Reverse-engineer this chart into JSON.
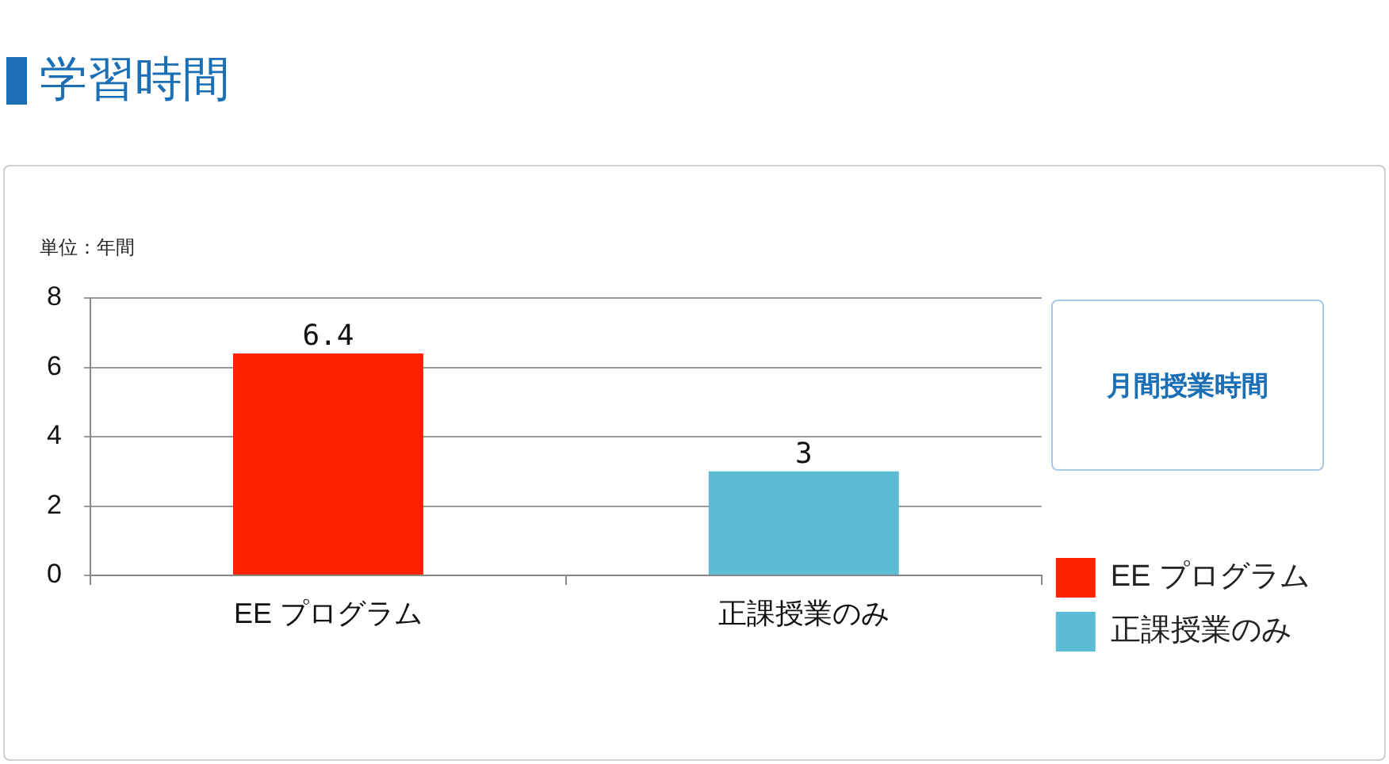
{
  "chart_data": {
    "type": "bar",
    "title": "学習時間",
    "ylabel": "単位：年間",
    "categories": [
      "EE プログラム",
      "正課授業のみ"
    ],
    "series": [
      {
        "name": "EE プログラム",
        "color": "#ff2200",
        "values": [
          6.4,
          null
        ]
      },
      {
        "name": "正課授業のみ",
        "color": "#5bbcd6",
        "values": [
          null,
          3
        ]
      }
    ],
    "ylim": [
      0,
      8
    ],
    "yticks": [
      0,
      2,
      4,
      6,
      8
    ],
    "grid": "y",
    "data_labels": true,
    "legend": "right",
    "annotations": [
      "月間授業時間"
    ]
  }
}
